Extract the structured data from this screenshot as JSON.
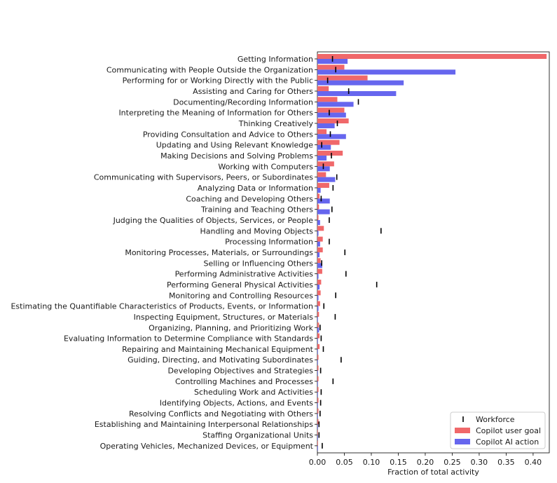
{
  "chart_data": {
    "type": "bar",
    "orientation": "horizontal",
    "title": "",
    "xlabel": "Fraction of total activity",
    "ylabel": "",
    "xlim": [
      0,
      0.43
    ],
    "xticks": [
      "0.00",
      "0.05",
      "0.10",
      "0.15",
      "0.20",
      "0.25",
      "0.30",
      "0.35",
      "0.40"
    ],
    "grid": false,
    "legend_position": "bottom-right",
    "categories": [
      "Getting Information",
      "Communicating with People Outside the Organization",
      "Performing for or Working Directly with the Public",
      "Assisting and Caring for Others",
      "Documenting/Recording Information",
      "Interpreting the Meaning of Information for Others",
      "Thinking Creatively",
      "Providing Consultation and Advice to Others",
      "Updating and Using Relevant Knowledge",
      "Making Decisions and Solving Problems",
      "Working with Computers",
      "Communicating with Supervisors, Peers, or Subordinates",
      "Analyzing Data or Information",
      "Coaching and Developing Others",
      "Training and Teaching Others",
      "Judging the Qualities of Objects, Services, or People",
      "Handling and Moving Objects",
      "Processing Information",
      "Monitoring Processes, Materials, or Surroundings",
      "Selling or Influencing Others",
      "Performing Administrative Activities",
      "Performing General Physical Activities",
      "Monitoring and Controlling Resources",
      "Estimating the Quantifiable Characteristics of Products, Events, or Information",
      "Inspecting Equipment, Structures, or Materials",
      "Organizing, Planning, and Prioritizing Work",
      "Evaluating Information to Determine Compliance with Standards",
      "Repairing and Maintaining Mechanical Equipment",
      "Guiding, Directing, and Motivating Subordinates",
      "Developing Objectives and Strategies",
      "Controlling Machines and Processes",
      "Scheduling Work and Activities",
      "Identifying Objects, Actions, and Events",
      "Resolving Conflicts and Negotiating with Others",
      "Establishing and Maintaining Interpersonal Relationships",
      "Staffing Organizational Units",
      "Operating Vehicles, Mechanized Devices, or Equipment"
    ],
    "series": [
      {
        "name": "Copilot user goal",
        "color": "#f0686a",
        "values": [
          0.425,
          0.05,
          0.093,
          0.021,
          0.037,
          0.05,
          0.058,
          0.017,
          0.041,
          0.047,
          0.031,
          0.016,
          0.022,
          0.004,
          0.003,
          0.002,
          0.012,
          0.01,
          0.01,
          0.006,
          0.009,
          0.007,
          0.006,
          0.005,
          0.003,
          0.003,
          0.004,
          0.004,
          0.002,
          0.002,
          0.002,
          0.002,
          0.002,
          0.002,
          0.002,
          0.001,
          0.001
        ]
      },
      {
        "name": "Copilot AI action",
        "color": "#6666ee",
        "values": [
          0.056,
          0.256,
          0.16,
          0.146,
          0.067,
          0.053,
          0.032,
          0.053,
          0.025,
          0.017,
          0.023,
          0.033,
          0.006,
          0.023,
          0.023,
          0.005,
          0.002,
          0.005,
          0.004,
          0.009,
          0.002,
          0.004,
          0.002,
          0.002,
          0.001,
          0.003,
          0.001,
          0.001,
          0.001,
          0.001,
          0.001,
          0.001,
          0.001,
          0.001,
          0.001,
          0.001,
          0.001
        ]
      },
      {
        "name": "Workforce",
        "color": "#000000",
        "marker": "tick",
        "values": [
          0.028,
          0.034,
          0.019,
          0.058,
          0.076,
          0.022,
          0.037,
          0.024,
          0.008,
          0.026,
          0.011,
          0.036,
          0.029,
          0.007,
          0.027,
          0.022,
          0.118,
          0.022,
          0.051,
          0.008,
          0.053,
          0.11,
          0.034,
          0.012,
          0.033,
          0.005,
          0.007,
          0.011,
          0.044,
          0.006,
          0.029,
          0.007,
          0.006,
          0.005,
          0.003,
          0.003,
          0.009
        ]
      }
    ],
    "legend": [
      "Workforce",
      "Copilot user goal",
      "Copilot AI action"
    ]
  }
}
